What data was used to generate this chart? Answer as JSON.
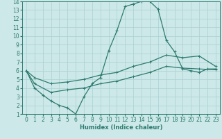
{
  "xlabel": "Humidex (Indice chaleur)",
  "bg_color": "#cce8e8",
  "grid_color": "#aad0d0",
  "line_color": "#2d7a6e",
  "xlim": [
    -0.5,
    23.5
  ],
  "ylim": [
    1,
    14
  ],
  "xticks": [
    0,
    1,
    2,
    3,
    4,
    5,
    6,
    7,
    8,
    9,
    10,
    11,
    12,
    13,
    14,
    15,
    16,
    17,
    18,
    19,
    20,
    21,
    22,
    23
  ],
  "yticks": [
    1,
    2,
    3,
    4,
    5,
    6,
    7,
    8,
    9,
    10,
    11,
    12,
    13,
    14
  ],
  "line1_x": [
    0,
    1,
    2,
    3,
    4,
    5,
    6,
    7,
    8,
    9,
    10,
    11,
    12,
    13,
    14,
    15,
    16,
    17,
    18,
    19,
    20,
    21,
    22,
    23
  ],
  "line1_y": [
    6,
    4,
    3.2,
    2.5,
    2.0,
    1.7,
    1.0,
    3.0,
    4.5,
    5.2,
    8.3,
    10.6,
    13.4,
    13.7,
    14.0,
    14.0,
    13.1,
    9.5,
    8.2,
    6.2,
    6.0,
    5.8,
    6.2,
    6.2
  ],
  "line2_x": [
    0,
    1,
    3,
    5,
    7,
    9,
    11,
    13,
    15,
    17,
    19,
    21,
    23
  ],
  "line2_y": [
    6.0,
    5.2,
    4.5,
    4.7,
    5.0,
    5.5,
    5.8,
    6.5,
    7.0,
    7.8,
    7.5,
    7.7,
    6.5
  ],
  "line3_x": [
    0,
    1,
    3,
    5,
    7,
    9,
    11,
    13,
    15,
    17,
    19,
    21,
    23
  ],
  "line3_y": [
    6.0,
    4.5,
    3.5,
    3.8,
    4.0,
    4.5,
    4.8,
    5.3,
    5.8,
    6.5,
    6.3,
    6.2,
    6.1
  ]
}
